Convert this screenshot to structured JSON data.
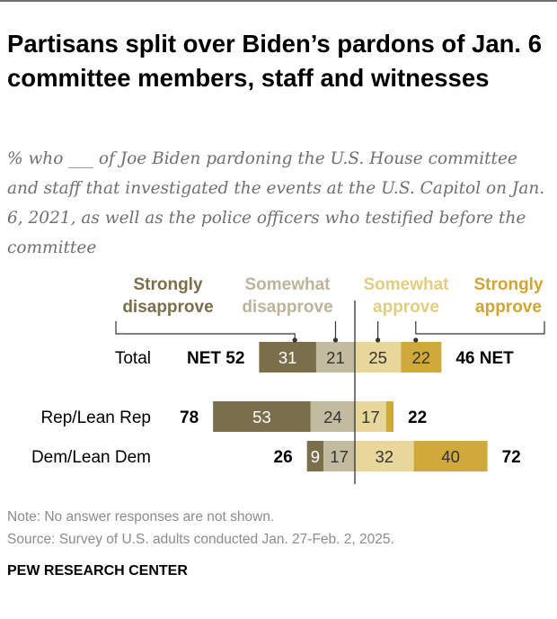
{
  "title": "Partisans split over Biden’s pardons of Jan. 6 committee members, staff and witnesses",
  "subtitle": "% who ___ of Joe Biden pardoning the U.S. House committee and staff that investigated the events at the U.S. Capitol on Jan. 6, 2021, as well as the police officers who testified before the committee",
  "note": "Note: No answer responses are not shown.",
  "source": "Source: Survey of U.S. adults conducted Jan. 27-Feb. 2, 2025.",
  "brand": "PEW RESEARCH CENTER",
  "colors": {
    "strongly_disapprove": "#7b6f4b",
    "somewhat_disapprove": "#c2bb9f",
    "somewhat_approve": "#e8d79a",
    "strongly_approve": "#cfaa3a",
    "legend_strongly_disapprove": "#7b6f4b",
    "legend_somewhat_disapprove": "#bcb59b",
    "legend_somewhat_approve": "#e2cd83",
    "legend_strongly_approve": "#cfa636"
  },
  "chart_data": {
    "type": "bar",
    "orientation": "horizontal-diverging",
    "legend": [
      {
        "key": "strongly_disapprove",
        "lines": [
          "Strongly",
          "disapprove"
        ]
      },
      {
        "key": "somewhat_disapprove",
        "lines": [
          "Somewhat",
          "disapprove"
        ]
      },
      {
        "key": "somewhat_approve",
        "lines": [
          "Somewhat",
          "approve"
        ]
      },
      {
        "key": "strongly_approve",
        "lines": [
          "Strongly",
          "approve"
        ]
      }
    ],
    "categories": [
      "Total",
      "Rep/Lean Rep",
      "Dem/Lean Dem"
    ],
    "series": [
      {
        "key": "strongly_disapprove",
        "values": [
          31,
          53,
          9
        ]
      },
      {
        "key": "somewhat_disapprove",
        "values": [
          21,
          24,
          17
        ]
      },
      {
        "key": "somewhat_approve",
        "values": [
          25,
          17,
          32
        ]
      },
      {
        "key": "strongly_approve",
        "values": [
          22,
          4,
          40
        ]
      }
    ],
    "net_disapprove": [
      52,
      78,
      26
    ],
    "net_approve": [
      46,
      22,
      72
    ],
    "bar_labels": [
      [
        "31",
        "21",
        "25",
        "22"
      ],
      [
        "53",
        "24",
        "17",
        ""
      ],
      [
        "9",
        "17",
        "32",
        "40"
      ]
    ],
    "net_disapprove_labels": [
      "NET 52",
      "78",
      "26"
    ],
    "net_approve_labels": [
      "46 NET",
      "22",
      "72"
    ]
  }
}
